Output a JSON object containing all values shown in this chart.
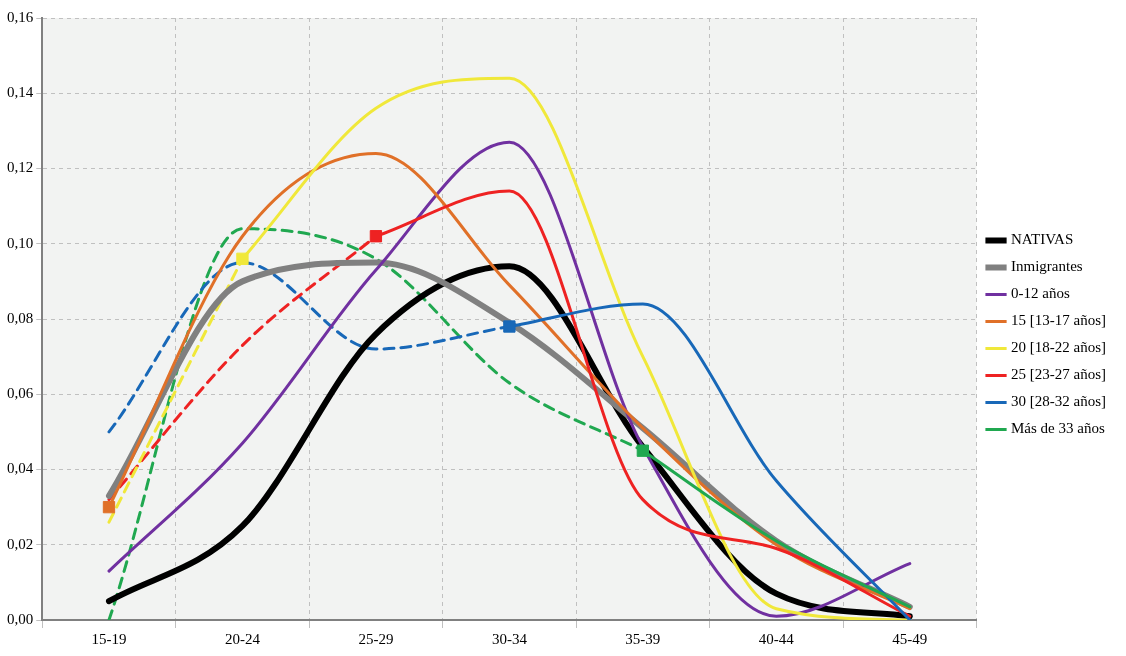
{
  "chart_data": {
    "type": "line",
    "categories": [
      "15-19",
      "20-24",
      "25-29",
      "30-34",
      "35-39",
      "40-44",
      "45-49"
    ],
    "ylim": [
      0,
      0.16
    ],
    "yticks": [
      {
        "value": 0,
        "label": "0,00"
      },
      {
        "value": 0.02,
        "label": "0,02"
      },
      {
        "value": 0.04,
        "label": "0,04"
      },
      {
        "value": 0.06,
        "label": "0,06"
      },
      {
        "value": 0.08,
        "label": "0,08"
      },
      {
        "value": 0.1,
        "label": "0,10"
      },
      {
        "value": 0.12,
        "label": "0,12"
      },
      {
        "value": 0.14,
        "label": "0,14"
      },
      {
        "value": 0.16,
        "label": "0,16"
      }
    ],
    "grid": true,
    "legend": "right",
    "marker": "none",
    "line_style": "solid",
    "series": [
      {
        "name": "NATIVAS",
        "color": "#000000",
        "values": [
          0.005,
          0.025,
          0.076,
          0.094,
          0.046,
          0.007,
          0.001
        ]
      },
      {
        "name": "Inmigrantes",
        "color": "#808080",
        "values": [
          0.033,
          0.09,
          0.095,
          0.079,
          0.051,
          0.021,
          0.0035
        ]
      },
      {
        "name": "0-12 años",
        "color": "#7030a0",
        "values": [
          0.013,
          0.047,
          0.093,
          0.127,
          0.046,
          0.001,
          0.015
        ]
      },
      {
        "name": "15 [13-17 años]",
        "color": "#e07028",
        "values": [
          0.03,
          0.102,
          0.124,
          0.089,
          0.051,
          0.02,
          0.003
        ]
      },
      {
        "name": "20 [18-22 años]",
        "color": "#f0e83a",
        "values": [
          null,
          0.096,
          0.136,
          0.144,
          0.07,
          0.003,
          0
        ]
      },
      {
        "name": "25 [23-27 años]",
        "color": "#ee2222",
        "values": [
          null,
          null,
          0.102,
          0.114,
          0.032,
          0.019,
          0.001
        ]
      },
      {
        "name": "30 [28-32 años]",
        "color": "#1868b8",
        "values": [
          null,
          null,
          null,
          0.078,
          0.084,
          0.037,
          0
        ]
      },
      {
        "name": "Más de 33 años",
        "color": "#20a850",
        "values": [
          null,
          null,
          null,
          null,
          0.045,
          0.021,
          0.0035
        ]
      },
      {
        "color": "#f0e83a",
        "line_style": "dashed",
        "values": [
          0.026,
          0.096,
          null,
          null,
          null,
          null,
          null
        ]
      },
      {
        "color": "#ee2222",
        "line_style": "dashed",
        "values": [
          0.032,
          0.073,
          0.102,
          null,
          null,
          null,
          null
        ]
      },
      {
        "color": "#1868b8",
        "line_style": "dashed",
        "values": [
          0.05,
          0.095,
          0.072,
          0.078,
          null,
          null,
          null
        ]
      },
      {
        "color": "#20a850",
        "line_style": "dashed",
        "values": [
          0,
          0.104,
          0.096,
          0.063,
          0.045,
          null,
          null
        ]
      },
      {
        "type": "scatter",
        "color": "#e07028",
        "marker": "square",
        "x": [
          "15-19"
        ],
        "values": [
          0.03
        ]
      },
      {
        "type": "scatter",
        "color": "#f0e83a",
        "marker": "square",
        "x": [
          "20-24"
        ],
        "values": [
          0.096
        ]
      },
      {
        "type": "scatter",
        "color": "#ee2222",
        "marker": "square",
        "x": [
          "25-29"
        ],
        "values": [
          0.102
        ]
      },
      {
        "type": "scatter",
        "color": "#1868b8",
        "marker": "square",
        "x": [
          "30-34"
        ],
        "values": [
          0.078
        ]
      },
      {
        "type": "scatter",
        "color": "#20a850",
        "marker": "square",
        "x": [
          "35-39"
        ],
        "values": [
          0.045
        ]
      }
    ]
  }
}
